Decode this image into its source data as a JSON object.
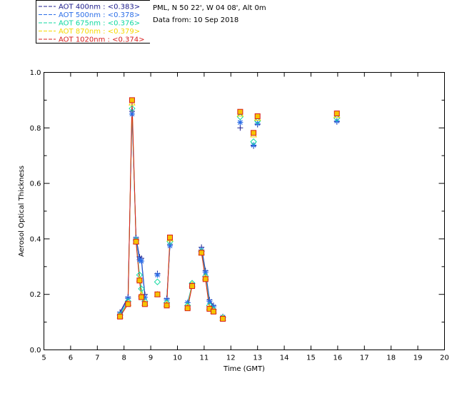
{
  "legend": [
    {
      "label": "AOT  400nm : <0.383>",
      "color": "#1c1c8c"
    },
    {
      "label": "AOT  500nm : <0.378>",
      "color": "#2b6ee8"
    },
    {
      "label": "AOT  675nm : <0.376>",
      "color": "#10d9a0"
    },
    {
      "label": "AOT  870nm : <0.379>",
      "color": "#f5d800"
    },
    {
      "label": "AOT 1020nm : <0.374>",
      "color": "#d81d1d"
    }
  ],
  "info": {
    "line1": "PML, N 50 22', W 04 08', Alt 0m",
    "line2": "Data from: 10 Sep 2018"
  },
  "chart_data": {
    "type": "line",
    "xlabel": "Time (GMT)",
    "ylabel": "Aerosol Optical Thickness",
    "xlim": [
      5,
      20
    ],
    "ylim": [
      0.0,
      1.0
    ],
    "x_ticks": [
      "5",
      "6",
      "7",
      "8",
      "9",
      "10",
      "11",
      "12",
      "13",
      "14",
      "15",
      "16",
      "17",
      "18",
      "19",
      "20"
    ],
    "y_ticks": [
      "0.0",
      "0.2",
      "0.4",
      "0.6",
      "0.8",
      "1.0"
    ],
    "grid": false,
    "x": [
      7.85,
      8.15,
      8.3,
      8.45,
      8.58,
      8.65,
      8.78,
      9.25,
      9.6,
      9.72,
      10.38,
      10.55,
      10.9,
      11.05,
      11.2,
      11.35,
      11.7,
      12.35,
      12.85,
      13.0,
      15.97
    ],
    "segments": [
      [
        0,
        6
      ],
      [
        8,
        9
      ],
      [
        10,
        11
      ],
      [
        12,
        15
      ]
    ],
    "series": [
      {
        "name": "AOT  400nm",
        "values": [
          0.136,
          0.19,
          0.86,
          0.405,
          0.335,
          0.33,
          0.2,
          0.275,
          0.185,
          0.38,
          0.17,
          0.23,
          0.37,
          0.285,
          0.18,
          0.16,
          0.12,
          0.8,
          0.735,
          0.812,
          0.822
        ]
      },
      {
        "name": "AOT  500nm",
        "values": [
          0.13,
          0.185,
          0.85,
          0.4,
          0.325,
          0.32,
          0.19,
          0.27,
          0.18,
          0.375,
          0.17,
          0.235,
          0.36,
          0.28,
          0.175,
          0.155,
          0.118,
          0.82,
          0.738,
          0.816,
          0.825
        ]
      },
      {
        "name": "AOT  675nm",
        "values": [
          0.125,
          0.175,
          0.87,
          0.395,
          0.27,
          0.22,
          0.175,
          0.245,
          0.17,
          0.39,
          0.16,
          0.24,
          0.355,
          0.265,
          0.16,
          0.145,
          0.116,
          0.84,
          0.75,
          0.825,
          0.835
        ]
      },
      {
        "name": "AOT  870nm",
        "values": [
          0.122,
          0.168,
          0.89,
          0.39,
          0.255,
          0.2,
          0.168,
          0.2,
          0.165,
          0.4,
          0.155,
          0.235,
          0.35,
          0.26,
          0.152,
          0.14,
          0.114,
          0.85,
          0.775,
          0.835,
          0.845
        ]
      },
      {
        "name": "AOT 1020nm",
        "values": [
          0.12,
          0.165,
          0.9,
          0.39,
          0.25,
          0.19,
          0.165,
          0.2,
          0.16,
          0.405,
          0.15,
          0.23,
          0.35,
          0.255,
          0.148,
          0.138,
          0.112,
          0.858,
          0.782,
          0.842,
          0.852
        ]
      }
    ],
    "markers": [
      "plus",
      "asterisk",
      "diamond",
      "triangle",
      "square"
    ]
  }
}
